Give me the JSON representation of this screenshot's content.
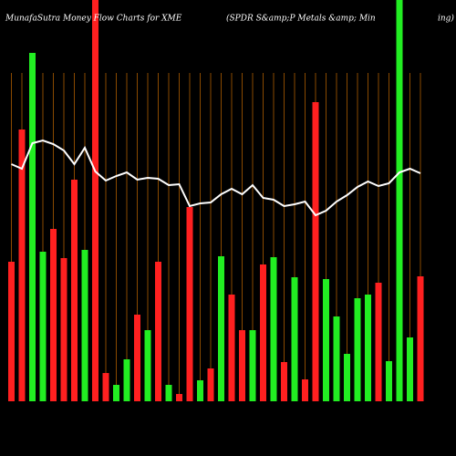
{
  "chart_data": {
    "type": "bar",
    "title": "MunafaSutra  Money Flow  Charts for XME",
    "subtitle": "(SPDR S&amp;P Metals &amp; Min",
    "subtitle_tail": "ing) M",
    "ylim": [
      0,
      440
    ],
    "grid": true,
    "grid_color": "#8a4a00",
    "series": [
      {
        "name": "Money Flow",
        "values": [
          153,
          298,
          382,
          164,
          189,
          157,
          243,
          166,
          440,
          31,
          18,
          46,
          95,
          78,
          153,
          18,
          8,
          213,
          23,
          36,
          159,
          117,
          78,
          78,
          150,
          158,
          43,
          136,
          24,
          328,
          134,
          93,
          52,
          113,
          117,
          130,
          44,
          460,
          70,
          137
        ],
        "colors": [
          "#ff2020",
          "#ff2020",
          "#22ee22",
          "#22ee22",
          "#ff2020",
          "#ff2020",
          "#ff2020",
          "#22ee22",
          "#ff2020",
          "#ff2020",
          "#22ee22",
          "#22ee22",
          "#ff2020",
          "#22ee22",
          "#ff2020",
          "#22ee22",
          "#ff2020",
          "#ff2020",
          "#22ee22",
          "#ff2020",
          "#22ee22",
          "#ff2020",
          "#ff2020",
          "#22ee22",
          "#ff2020",
          "#22ee22",
          "#ff2020",
          "#22ee22",
          "#ff2020",
          "#ff2020",
          "#22ee22",
          "#22ee22",
          "#22ee22",
          "#22ee22",
          "#22ee22",
          "#ff2020",
          "#22ee22",
          "#22ee22",
          "#22ee22",
          "#ff2020"
        ]
      },
      {
        "name": "Price",
        "color": "#ffffff",
        "values": [
          260,
          255,
          283,
          286,
          282,
          275,
          260,
          278,
          252,
          242,
          247,
          251,
          243,
          245,
          244,
          237,
          238,
          214,
          217,
          218,
          227,
          233,
          227,
          237,
          223,
          221,
          214,
          216,
          219,
          204,
          209,
          219,
          226,
          235,
          241,
          236,
          239,
          251,
          255,
          250
        ]
      }
    ]
  }
}
